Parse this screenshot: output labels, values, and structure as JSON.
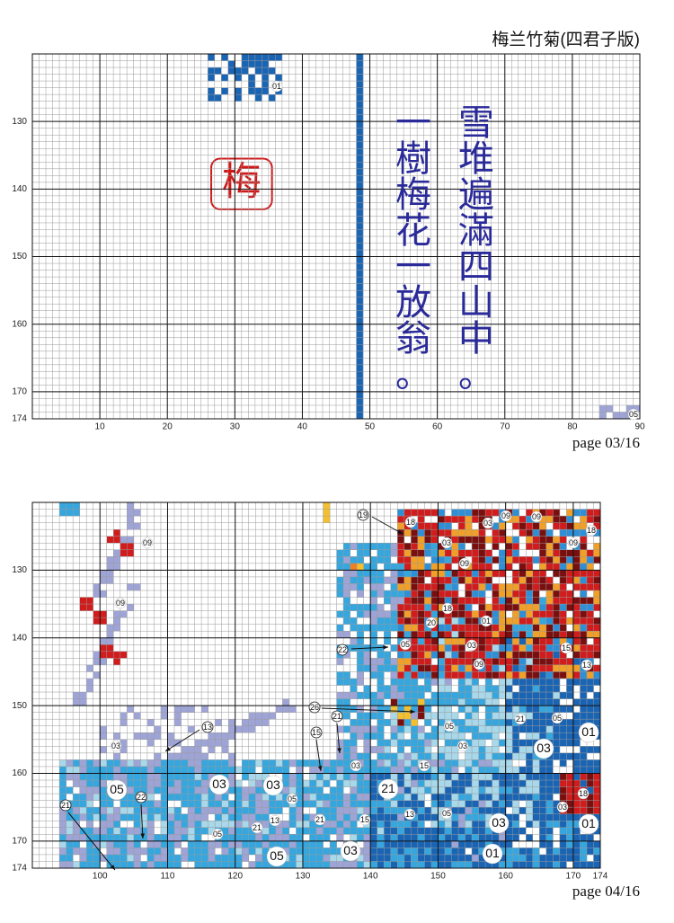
{
  "header": {
    "title": "梅兰竹菊(四君子版)"
  },
  "pages": [
    {
      "label": "page 03/16",
      "x_range": [
        0,
        90
      ],
      "y_range": [
        120,
        174
      ],
      "x_ticks": [
        10,
        20,
        30,
        40,
        50,
        60,
        70,
        80,
        90
      ],
      "y_ticks": [
        130,
        140,
        150,
        160,
        170,
        174
      ],
      "symbols": [
        "01",
        "05"
      ],
      "seal": "梅",
      "calligraphy": [
        "一樹梅花一放翁。",
        "雪堆遍滿四山中。"
      ]
    },
    {
      "label": "page 04/16",
      "x_range": [
        90,
        174
      ],
      "y_range": [
        120,
        174
      ],
      "x_ticks": [
        100,
        110,
        120,
        130,
        140,
        150,
        160,
        170,
        174
      ],
      "y_ticks": [
        130,
        140,
        150,
        160,
        170,
        174
      ],
      "symbols": [
        "19",
        "18",
        "03",
        "09",
        "09",
        "03",
        "09",
        "09",
        "18",
        "09",
        "09",
        "18",
        "20",
        "01",
        "22",
        "05",
        "03",
        "15",
        "13",
        "09",
        "26",
        "21",
        "13",
        "15",
        "05",
        "21",
        "05",
        "01",
        "03",
        "03",
        "03",
        "03",
        "15",
        "05",
        "03",
        "03",
        "05",
        "21",
        "22",
        "18",
        "21",
        "05",
        "13",
        "21",
        "13",
        "15",
        "21",
        "05",
        "01",
        "03",
        "03",
        "01",
        "05",
        "03"
      ]
    }
  ]
}
